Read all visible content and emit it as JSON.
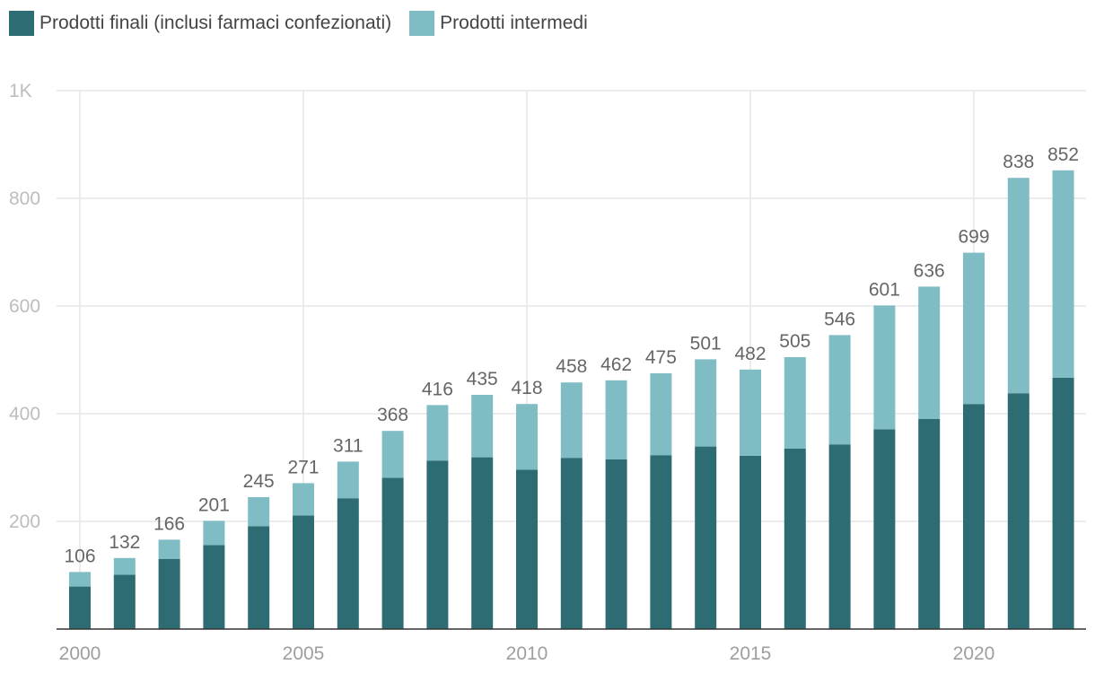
{
  "chart_data": {
    "type": "bar",
    "stacked": true,
    "x": [
      2000,
      2001,
      2002,
      2003,
      2004,
      2005,
      2006,
      2007,
      2008,
      2009,
      2010,
      2011,
      2012,
      2013,
      2014,
      2015,
      2016,
      2017,
      2018,
      2019,
      2020,
      2021,
      2022
    ],
    "series": [
      {
        "name": "Prodotti finali (inclusi farmaci confezionati)",
        "color": "#2e6c74",
        "values": [
          79,
          101,
          130,
          156,
          191,
          211,
          243,
          281,
          313,
          319,
          296,
          318,
          315,
          323,
          339,
          322,
          335,
          343,
          371,
          390,
          418,
          438,
          467
        ]
      },
      {
        "name": "Prodotti intermedi",
        "color": "#7fbcc4",
        "values": [
          27,
          31,
          36,
          45,
          54,
          60,
          68,
          87,
          103,
          116,
          122,
          140,
          147,
          152,
          162,
          160,
          170,
          203,
          230,
          246,
          281,
          400,
          385
        ]
      }
    ],
    "totals": [
      "106",
      "132",
      "166",
      "201",
      "245",
      "271",
      "311",
      "368",
      "416",
      "435",
      "418",
      "458",
      "462",
      "475",
      "501",
      "482",
      "505",
      "546",
      "601",
      "636",
      "699",
      "838",
      "852"
    ],
    "y_ticks": [
      "200",
      "400",
      "600",
      "800",
      "1K"
    ],
    "x_ticks": [
      "2000",
      "2005",
      "2010",
      "2015",
      "2020"
    ],
    "ylim": [
      0,
      1000
    ],
    "grid": true,
    "legend_position": "top-left",
    "title": "",
    "xlabel": "",
    "ylabel": ""
  }
}
